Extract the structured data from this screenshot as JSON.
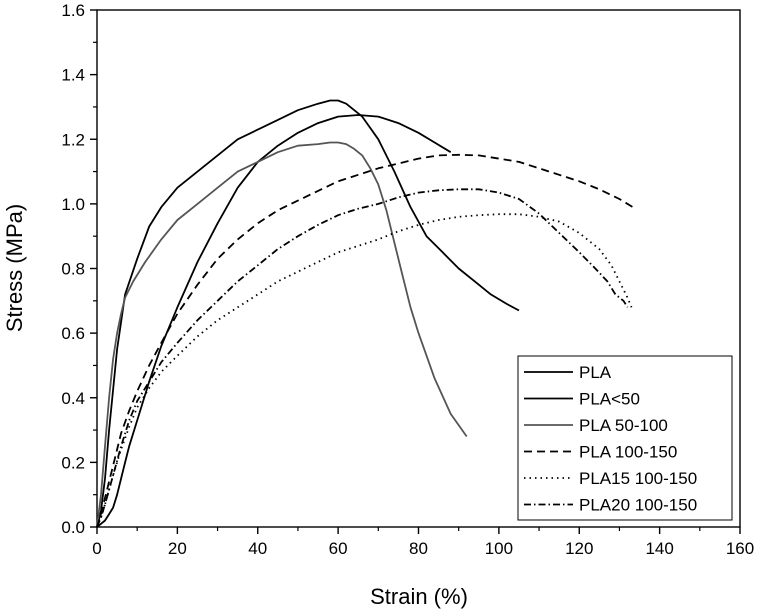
{
  "chart_data": {
    "type": "line",
    "title": "",
    "xlabel": "Strain (%)",
    "ylabel": "Stress (MPa)",
    "xlim": [
      0,
      160
    ],
    "ylim": [
      0,
      1.6
    ],
    "xticks": [
      0,
      20,
      40,
      60,
      80,
      100,
      120,
      140,
      160
    ],
    "yticks": [
      0.0,
      0.2,
      0.4,
      0.6,
      0.8,
      1.0,
      1.2,
      1.4,
      1.6
    ],
    "xtick_labels": [
      "0",
      "20",
      "40",
      "60",
      "80",
      "100",
      "120",
      "140",
      "160"
    ],
    "ytick_labels": [
      "0.0",
      "0.2",
      "0.4",
      "0.6",
      "0.8",
      "1.0",
      "1.2",
      "1.4",
      "1.6"
    ],
    "grid": false,
    "legend_position": "bottom-right",
    "series": [
      {
        "name": "PLA",
        "color": "#000000",
        "dash": "solid",
        "x": [
          0,
          1,
          2,
          3,
          5,
          7,
          10,
          13,
          16,
          20,
          25,
          30,
          35,
          40,
          45,
          50,
          55,
          58,
          60,
          62,
          66,
          70,
          74,
          78,
          82,
          86,
          90,
          94,
          98,
          102,
          105
        ],
        "y": [
          0,
          0.05,
          0.15,
          0.3,
          0.55,
          0.72,
          0.83,
          0.93,
          0.99,
          1.05,
          1.1,
          1.15,
          1.2,
          1.23,
          1.26,
          1.29,
          1.31,
          1.32,
          1.32,
          1.31,
          1.27,
          1.2,
          1.1,
          0.99,
          0.9,
          0.85,
          0.8,
          0.76,
          0.72,
          0.69,
          0.67
        ]
      },
      {
        "name": "PLA<50",
        "color": "#000000",
        "dash": "solid",
        "x": [
          0,
          1,
          2,
          3,
          4,
          5,
          6,
          7,
          8,
          10,
          13,
          16,
          20,
          25,
          30,
          35,
          40,
          45,
          50,
          55,
          60,
          65,
          70,
          75,
          80,
          84,
          88
        ],
        "y": [
          0,
          0.01,
          0.02,
          0.04,
          0.06,
          0.1,
          0.15,
          0.2,
          0.25,
          0.33,
          0.45,
          0.56,
          0.68,
          0.82,
          0.94,
          1.05,
          1.13,
          1.18,
          1.22,
          1.25,
          1.27,
          1.275,
          1.27,
          1.25,
          1.22,
          1.19,
          1.16
        ]
      },
      {
        "name": "PLA 50-100",
        "color": "#555555",
        "dash": "solid",
        "x": [
          0,
          1,
          2,
          3,
          4,
          5,
          6,
          7,
          9,
          12,
          16,
          20,
          25,
          30,
          35,
          40,
          45,
          50,
          55,
          58,
          60,
          62,
          64,
          66,
          68,
          70,
          72,
          74,
          76,
          78,
          80,
          84,
          88,
          92
        ],
        "y": [
          0,
          0.1,
          0.25,
          0.4,
          0.52,
          0.6,
          0.66,
          0.71,
          0.76,
          0.82,
          0.89,
          0.95,
          1.0,
          1.05,
          1.1,
          1.13,
          1.16,
          1.18,
          1.185,
          1.19,
          1.19,
          1.185,
          1.17,
          1.15,
          1.11,
          1.06,
          0.98,
          0.88,
          0.78,
          0.68,
          0.6,
          0.46,
          0.35,
          0.28
        ]
      },
      {
        "name": "PLA 100-150",
        "color": "#000000",
        "dash": "dash",
        "x": [
          0,
          1,
          2,
          4,
          6,
          8,
          10,
          13,
          16,
          20,
          25,
          30,
          35,
          40,
          45,
          50,
          55,
          60,
          65,
          70,
          75,
          80,
          85,
          90,
          95,
          100,
          105,
          110,
          115,
          120,
          125,
          130,
          134
        ],
        "y": [
          0,
          0.04,
          0.09,
          0.19,
          0.29,
          0.36,
          0.42,
          0.5,
          0.57,
          0.66,
          0.75,
          0.83,
          0.89,
          0.94,
          0.98,
          1.01,
          1.04,
          1.07,
          1.09,
          1.11,
          1.125,
          1.14,
          1.15,
          1.152,
          1.15,
          1.14,
          1.13,
          1.11,
          1.09,
          1.07,
          1.045,
          1.015,
          0.985
        ]
      },
      {
        "name": "PLA15 100-150",
        "color": "#000000",
        "dash": "dot",
        "x": [
          0,
          1,
          2,
          4,
          6,
          8,
          10,
          13,
          16,
          20,
          25,
          30,
          35,
          40,
          45,
          50,
          55,
          60,
          65,
          70,
          75,
          80,
          85,
          90,
          95,
          100,
          105,
          110,
          115,
          120,
          125,
          128,
          130,
          132,
          133
        ],
        "y": [
          0,
          0.03,
          0.07,
          0.16,
          0.24,
          0.31,
          0.37,
          0.43,
          0.48,
          0.53,
          0.59,
          0.64,
          0.68,
          0.72,
          0.76,
          0.79,
          0.82,
          0.85,
          0.87,
          0.89,
          0.915,
          0.935,
          0.95,
          0.96,
          0.965,
          0.968,
          0.968,
          0.96,
          0.945,
          0.91,
          0.86,
          0.81,
          0.76,
          0.71,
          0.68
        ]
      },
      {
        "name": "PLA20 100-150",
        "color": "#000000",
        "dash": "dashdot",
        "x": [
          0,
          1,
          2,
          4,
          6,
          8,
          10,
          13,
          16,
          20,
          25,
          30,
          35,
          40,
          45,
          50,
          55,
          60,
          65,
          70,
          75,
          80,
          85,
          90,
          95,
          100,
          105,
          110,
          115,
          120,
          124,
          127,
          129,
          131,
          132
        ],
        "y": [
          0,
          0.03,
          0.07,
          0.16,
          0.25,
          0.33,
          0.39,
          0.45,
          0.51,
          0.57,
          0.64,
          0.7,
          0.76,
          0.81,
          0.86,
          0.9,
          0.935,
          0.965,
          0.985,
          1.0,
          1.02,
          1.035,
          1.042,
          1.045,
          1.045,
          1.035,
          1.015,
          0.97,
          0.91,
          0.85,
          0.8,
          0.76,
          0.72,
          0.7,
          0.68
        ]
      }
    ]
  }
}
